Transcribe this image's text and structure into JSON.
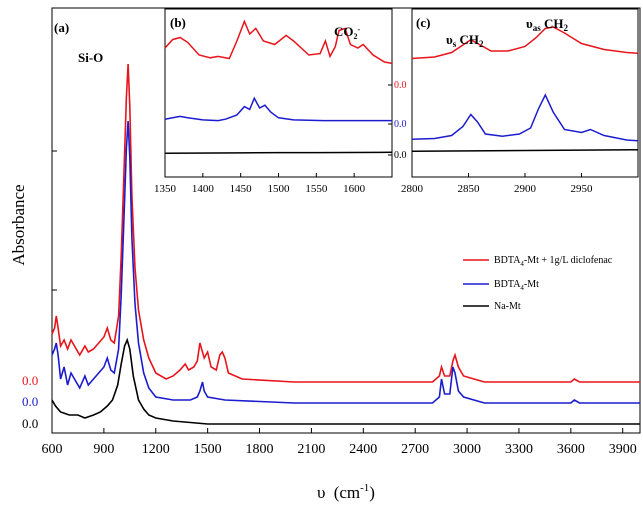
{
  "colors": {
    "red": "#e8141b",
    "blue": "#1c1ccf",
    "black": "#000000"
  },
  "chart_data": {
    "type": "line",
    "xlabel_symbol": "υ",
    "xlabel_unit_base": "(cm",
    "xlabel_unit_sup": "-1",
    "xlabel_unit_end": ")",
    "ylabel": "Absorbance",
    "xlim": [
      600,
      4000
    ],
    "xticks": [
      "600",
      "900",
      "1200",
      "1500",
      "1800",
      "2100",
      "2400",
      "2700",
      "3000",
      "3300",
      "3600",
      "3900"
    ],
    "xtick_values": [
      600,
      900,
      1200,
      1500,
      1800,
      2100,
      2400,
      2700,
      3000,
      3300,
      3600,
      3900
    ],
    "panel_label": "(a)",
    "annotation_sio": "Si-O",
    "zero_labels": [
      "0.0",
      "0.0",
      "0.0"
    ],
    "legend": {
      "red_base": "BDTA",
      "red_sub": "4",
      "red_end": "-Mt + 1g/L diclofenac",
      "blue_base": "BDTA",
      "blue_sub": "4",
      "blue_end": "-Mt",
      "black": "Na-Mt"
    },
    "series": [
      {
        "color": "red",
        "baseline": 0.0,
        "points": [
          [
            600,
            0.16
          ],
          [
            615,
            0.18
          ],
          [
            625,
            0.22
          ],
          [
            635,
            0.18
          ],
          [
            650,
            0.12
          ],
          [
            670,
            0.14
          ],
          [
            690,
            0.11
          ],
          [
            710,
            0.14
          ],
          [
            730,
            0.12
          ],
          [
            760,
            0.09
          ],
          [
            790,
            0.12
          ],
          [
            810,
            0.1
          ],
          [
            840,
            0.11
          ],
          [
            870,
            0.13
          ],
          [
            900,
            0.15
          ],
          [
            920,
            0.18
          ],
          [
            940,
            0.14
          ],
          [
            960,
            0.13
          ],
          [
            985,
            0.22
          ],
          [
            1000,
            0.42
          ],
          [
            1015,
            0.68
          ],
          [
            1030,
            0.95
          ],
          [
            1040,
            1.06
          ],
          [
            1050,
            0.92
          ],
          [
            1062,
            0.62
          ],
          [
            1080,
            0.38
          ],
          [
            1100,
            0.24
          ],
          [
            1130,
            0.14
          ],
          [
            1160,
            0.08
          ],
          [
            1200,
            0.03
          ],
          [
            1260,
            0.01
          ],
          [
            1300,
            0.02
          ],
          [
            1340,
            0.04
          ],
          [
            1370,
            0.06
          ],
          [
            1390,
            0.04
          ],
          [
            1420,
            0.05
          ],
          [
            1440,
            0.07
          ],
          [
            1455,
            0.13
          ],
          [
            1470,
            0.1
          ],
          [
            1480,
            0.08
          ],
          [
            1500,
            0.1
          ],
          [
            1520,
            0.05
          ],
          [
            1550,
            0.04
          ],
          [
            1570,
            0.09
          ],
          [
            1585,
            0.1
          ],
          [
            1600,
            0.08
          ],
          [
            1620,
            0.03
          ],
          [
            1700,
            0.01
          ],
          [
            2000,
            0.0
          ],
          [
            2800,
            0.0
          ],
          [
            2840,
            0.02
          ],
          [
            2852,
            0.05
          ],
          [
            2870,
            0.02
          ],
          [
            2900,
            0.02
          ],
          [
            2918,
            0.07
          ],
          [
            2930,
            0.09
          ],
          [
            2950,
            0.05
          ],
          [
            2980,
            0.02
          ],
          [
            3100,
            0.0
          ],
          [
            3600,
            0.0
          ],
          [
            3620,
            0.01
          ],
          [
            3650,
            0.0
          ],
          [
            4000,
            0.0
          ]
        ]
      },
      {
        "color": "blue",
        "baseline": 0.0,
        "points": [
          [
            600,
            0.16
          ],
          [
            615,
            0.18
          ],
          [
            625,
            0.2
          ],
          [
            635,
            0.16
          ],
          [
            650,
            0.08
          ],
          [
            670,
            0.12
          ],
          [
            690,
            0.06
          ],
          [
            710,
            0.1
          ],
          [
            730,
            0.08
          ],
          [
            760,
            0.05
          ],
          [
            790,
            0.09
          ],
          [
            810,
            0.06
          ],
          [
            840,
            0.08
          ],
          [
            870,
            0.1
          ],
          [
            900,
            0.12
          ],
          [
            920,
            0.15
          ],
          [
            940,
            0.11
          ],
          [
            960,
            0.1
          ],
          [
            985,
            0.18
          ],
          [
            1000,
            0.36
          ],
          [
            1015,
            0.6
          ],
          [
            1030,
            0.85
          ],
          [
            1040,
            0.94
          ],
          [
            1050,
            0.82
          ],
          [
            1062,
            0.55
          ],
          [
            1080,
            0.33
          ],
          [
            1100,
            0.2
          ],
          [
            1130,
            0.1
          ],
          [
            1160,
            0.05
          ],
          [
            1200,
            0.02
          ],
          [
            1300,
            0.01
          ],
          [
            1400,
            0.01
          ],
          [
            1440,
            0.02
          ],
          [
            1455,
            0.04
          ],
          [
            1470,
            0.07
          ],
          [
            1480,
            0.04
          ],
          [
            1500,
            0.02
          ],
          [
            1600,
            0.01
          ],
          [
            2000,
            0.0
          ],
          [
            2800,
            0.0
          ],
          [
            2840,
            0.02
          ],
          [
            2852,
            0.08
          ],
          [
            2870,
            0.03
          ],
          [
            2900,
            0.03
          ],
          [
            2918,
            0.12
          ],
          [
            2930,
            0.1
          ],
          [
            2950,
            0.04
          ],
          [
            2980,
            0.02
          ],
          [
            3100,
            0.0
          ],
          [
            3600,
            0.0
          ],
          [
            3620,
            0.01
          ],
          [
            3650,
            0.0
          ],
          [
            4000,
            0.0
          ]
        ]
      },
      {
        "color": "black",
        "baseline": 0.0,
        "points": [
          [
            600,
            0.08
          ],
          [
            620,
            0.06
          ],
          [
            650,
            0.04
          ],
          [
            700,
            0.03
          ],
          [
            750,
            0.03
          ],
          [
            790,
            0.02
          ],
          [
            840,
            0.03
          ],
          [
            880,
            0.04
          ],
          [
            920,
            0.06
          ],
          [
            950,
            0.08
          ],
          [
            980,
            0.13
          ],
          [
            1000,
            0.2
          ],
          [
            1020,
            0.26
          ],
          [
            1035,
            0.28
          ],
          [
            1050,
            0.25
          ],
          [
            1070,
            0.16
          ],
          [
            1100,
            0.08
          ],
          [
            1130,
            0.05
          ],
          [
            1160,
            0.03
          ],
          [
            1200,
            0.02
          ],
          [
            1300,
            0.01
          ],
          [
            1500,
            0.0
          ],
          [
            4000,
            0.0
          ]
        ]
      }
    ],
    "insets": [
      {
        "label": "(b)",
        "xlim": [
          1350,
          1650
        ],
        "xticks": [
          "1350",
          "1400",
          "1450",
          "1500",
          "1550",
          "1600"
        ],
        "xtick_values": [
          1350,
          1400,
          1450,
          1500,
          1550,
          1600
        ],
        "annotation_base": "CO",
        "annotation_sub": "2",
        "annotation_sup": "-",
        "zero_labels": [
          "0.0",
          "0.0",
          "0.0"
        ],
        "series": [
          {
            "color": "red",
            "points": [
              [
                1350,
                0.5
              ],
              [
                1360,
                0.62
              ],
              [
                1370,
                0.65
              ],
              [
                1380,
                0.58
              ],
              [
                1395,
                0.4
              ],
              [
                1410,
                0.36
              ],
              [
                1420,
                0.38
              ],
              [
                1435,
                0.35
              ],
              [
                1445,
                0.6
              ],
              [
                1455,
                0.88
              ],
              [
                1462,
                0.7
              ],
              [
                1470,
                0.78
              ],
              [
                1480,
                0.6
              ],
              [
                1495,
                0.55
              ],
              [
                1510,
                0.68
              ],
              [
                1520,
                0.6
              ],
              [
                1540,
                0.4
              ],
              [
                1555,
                0.42
              ],
              [
                1562,
                0.6
              ],
              [
                1568,
                0.38
              ],
              [
                1575,
                0.52
              ],
              [
                1580,
                0.75
              ],
              [
                1588,
                0.78
              ],
              [
                1595,
                0.55
              ],
              [
                1605,
                0.5
              ],
              [
                1612,
                0.55
              ],
              [
                1625,
                0.4
              ],
              [
                1640,
                0.3
              ],
              [
                1650,
                0.28
              ]
            ]
          },
          {
            "color": "blue",
            "points": [
              [
                1350,
                0.04
              ],
              [
                1360,
                0.06
              ],
              [
                1370,
                0.08
              ],
              [
                1380,
                0.06
              ],
              [
                1400,
                0.03
              ],
              [
                1420,
                0.02
              ],
              [
                1430,
                0.04
              ],
              [
                1445,
                0.1
              ],
              [
                1455,
                0.22
              ],
              [
                1462,
                0.18
              ],
              [
                1468,
                0.34
              ],
              [
                1475,
                0.2
              ],
              [
                1482,
                0.24
              ],
              [
                1490,
                0.14
              ],
              [
                1500,
                0.06
              ],
              [
                1520,
                0.03
              ],
              [
                1560,
                0.02
              ],
              [
                1600,
                0.02
              ],
              [
                1650,
                0.02
              ]
            ]
          },
          {
            "color": "black",
            "points": [
              [
                1350,
                0.01
              ],
              [
                1450,
                0.015
              ],
              [
                1500,
                0.02
              ],
              [
                1550,
                0.02
              ],
              [
                1650,
                0.025
              ]
            ]
          }
        ]
      },
      {
        "label": "(c)",
        "xlim": [
          2800,
          3000
        ],
        "xticks": [
          "2800",
          "2850",
          "2900",
          "2950"
        ],
        "xtick_values": [
          2800,
          2850,
          2900,
          2950
        ],
        "ann1_base": "υ",
        "ann1_sub": "s",
        "ann1_end": " CH",
        "ann1_sub2": "2",
        "ann2_base": "υ",
        "ann2_sub": "as",
        "ann2_end": " CH",
        "ann2_sub2": "2",
        "series": [
          {
            "color": "red",
            "points": [
              [
                2800,
                0.5
              ],
              [
                2820,
                0.52
              ],
              [
                2835,
                0.58
              ],
              [
                2845,
                0.68
              ],
              [
                2852,
                0.75
              ],
              [
                2858,
                0.7
              ],
              [
                2870,
                0.6
              ],
              [
                2885,
                0.6
              ],
              [
                2900,
                0.66
              ],
              [
                2910,
                0.78
              ],
              [
                2918,
                0.9
              ],
              [
                2925,
                0.92
              ],
              [
                2935,
                0.84
              ],
              [
                2950,
                0.7
              ],
              [
                2970,
                0.62
              ],
              [
                2990,
                0.58
              ],
              [
                3000,
                0.57
              ]
            ]
          },
          {
            "color": "blue",
            "points": [
              [
                2800,
                0.09
              ],
              [
                2820,
                0.1
              ],
              [
                2835,
                0.14
              ],
              [
                2845,
                0.26
              ],
              [
                2852,
                0.42
              ],
              [
                2858,
                0.32
              ],
              [
                2865,
                0.16
              ],
              [
                2880,
                0.13
              ],
              [
                2895,
                0.16
              ],
              [
                2905,
                0.24
              ],
              [
                2912,
                0.5
              ],
              [
                2918,
                0.68
              ],
              [
                2925,
                0.45
              ],
              [
                2935,
                0.22
              ],
              [
                2950,
                0.18
              ],
              [
                2958,
                0.22
              ],
              [
                2970,
                0.14
              ],
              [
                2990,
                0.08
              ],
              [
                3000,
                0.07
              ]
            ]
          },
          {
            "color": "black",
            "points": [
              [
                2800,
                0.01
              ],
              [
                2900,
                0.02
              ],
              [
                3000,
                0.03
              ]
            ]
          }
        ]
      }
    ]
  }
}
